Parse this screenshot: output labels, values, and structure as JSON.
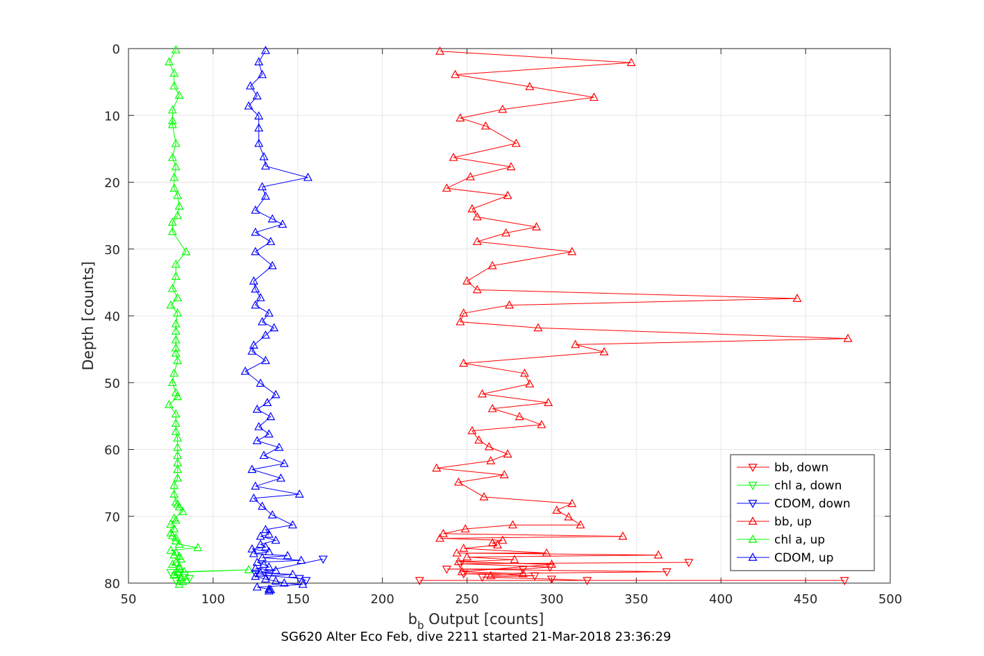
{
  "chart_data": {
    "type": "line",
    "xlabel_main": "b",
    "xlabel_sub": "b",
    "xlabel_rest": " Output [counts]",
    "ylabel": "Depth [counts]",
    "caption": "SG620 Alter Eco Feb, dive 2211 started 21-Mar-2018 23:36:29",
    "xlim": [
      50,
      500
    ],
    "ylim": [
      0,
      80
    ],
    "y_reversed": true,
    "grid": true,
    "legend_position": "bottom-right",
    "xticks": [
      50,
      100,
      150,
      200,
      250,
      300,
      350,
      400,
      450,
      500
    ],
    "yticks": [
      0,
      10,
      20,
      30,
      40,
      50,
      60,
      70,
      80
    ],
    "series": [
      {
        "name": "bb, down",
        "color": "#ff0000",
        "marker": "triangle-down",
        "x": [
          222,
          473,
          321,
          300,
          259,
          290,
          248,
          368,
          238,
          283,
          299,
          246,
          381
        ],
        "y": [
          79.6,
          79.6,
          79.6,
          79.4,
          79.1,
          78.9,
          78.6,
          78.3,
          77.9,
          77.9,
          77.6,
          77.1,
          76.9
        ]
      },
      {
        "name": "chl a, down",
        "color": "#00ff00",
        "marker": "triangle-down",
        "x": [
          78,
          86,
          80,
          75
        ],
        "y": [
          79.6,
          79.3,
          78.8,
          78.4
        ]
      },
      {
        "name": "CDOM, down",
        "color": "#0000ff",
        "marker": "triangle-down",
        "x": [
          155,
          151,
          133,
          125,
          165
        ],
        "y": [
          79.6,
          79.3,
          78.9,
          78.5,
          76.4
        ]
      },
      {
        "name": "bb, up",
        "color": "#ff0000",
        "marker": "triangle-up",
        "x": [
          234,
          347,
          243,
          287,
          325,
          271,
          246,
          261,
          279,
          242,
          276,
          252,
          238,
          274,
          253,
          256,
          291,
          273,
          256,
          312,
          265,
          250,
          256,
          445,
          275,
          248,
          246,
          292,
          475,
          314,
          331,
          248,
          284,
          287,
          259,
          298,
          265,
          281,
          294,
          253,
          257,
          263,
          274,
          264,
          232,
          272,
          245,
          260,
          312,
          303,
          310,
          317,
          277,
          249,
          236,
          342,
          234,
          271,
          265,
          268,
          248,
          297,
          244,
          363,
          250,
          278,
          245,
          300,
          247,
          283,
          264
        ],
        "y": [
          0.4,
          2.1,
          3.9,
          5.7,
          7.3,
          9.1,
          10.4,
          11.6,
          14.2,
          16.3,
          17.7,
          19.2,
          20.9,
          22.0,
          24.0,
          25.2,
          26.7,
          27.6,
          28.9,
          30.4,
          32.5,
          34.8,
          36.1,
          37.4,
          38.4,
          39.6,
          40.9,
          41.8,
          43.4,
          44.3,
          45.4,
          47.1,
          48.6,
          50.2,
          51.7,
          53.0,
          53.9,
          55.1,
          56.3,
          57.2,
          58.6,
          59.6,
          60.7,
          61.7,
          62.8,
          63.8,
          64.9,
          67.1,
          68.1,
          69.1,
          70.1,
          71.3,
          71.3,
          71.9,
          72.6,
          73.0,
          73.3,
          73.6,
          74.0,
          74.3,
          74.8,
          75.5,
          75.5,
          75.8,
          76.1,
          76.5,
          76.8,
          77.2,
          78.3,
          78.6,
          78.9
        ]
      },
      {
        "name": "chl a, up",
        "color": "#00ff00",
        "marker": "triangle-up",
        "x": [
          78,
          74,
          77,
          77,
          80,
          76,
          76,
          76,
          78,
          76,
          78,
          77,
          77,
          79,
          80,
          79,
          76,
          76,
          84,
          78,
          78,
          76,
          79,
          75,
          79,
          78,
          78,
          78,
          78,
          78,
          79,
          77,
          76,
          78,
          79,
          74,
          78,
          78,
          78,
          79,
          79,
          79,
          79,
          79,
          79,
          77,
          77,
          78,
          79,
          80,
          82,
          77,
          78,
          75,
          77,
          75,
          76,
          78,
          78,
          80,
          91,
          75,
          78,
          77,
          80,
          81,
          78,
          76,
          80,
          80,
          83,
          121,
          79,
          77,
          81,
          84,
          82,
          80
        ],
        "y": [
          0.2,
          2.0,
          3.7,
          5.6,
          7.0,
          9.2,
          10.8,
          11.4,
          14.2,
          16.3,
          17.7,
          19.3,
          20.9,
          22.0,
          23.6,
          25.0,
          26.0,
          27.4,
          30.4,
          32.3,
          34.1,
          35.9,
          37.3,
          38.4,
          39.6,
          41.2,
          42.3,
          43.6,
          44.8,
          45.6,
          46.7,
          48.6,
          50.0,
          51.5,
          52.1,
          53.3,
          54.7,
          56.1,
          57.3,
          58.3,
          59.7,
          60.9,
          62.0,
          63.0,
          64.3,
          65.4,
          66.7,
          67.9,
          68.2,
          68.6,
          69.3,
          70.3,
          70.6,
          71.2,
          71.9,
          72.5,
          72.9,
          73.2,
          73.7,
          74.2,
          74.7,
          75.1,
          75.4,
          75.8,
          76.0,
          76.4,
          76.9,
          77.2,
          77.5,
          77.8,
          78.3,
          78.0,
          78.4,
          78.8,
          79.2,
          79.5,
          79.8,
          80.2
        ]
      },
      {
        "name": "CDOM, up",
        "color": "#0000ff",
        "marker": "triangle-up",
        "x": [
          131,
          127,
          129,
          122,
          126,
          121,
          127,
          127,
          127,
          130,
          131,
          156,
          129,
          131,
          125,
          135,
          141,
          125,
          134,
          125,
          135,
          124,
          125,
          128,
          125,
          133,
          129,
          136,
          131,
          124,
          123,
          131,
          119,
          128,
          137,
          132,
          126,
          134,
          127,
          133,
          126,
          139,
          130,
          142,
          123,
          140,
          125,
          151,
          124,
          129,
          135,
          147,
          131,
          133,
          128,
          137,
          128,
          131,
          123,
          133,
          124,
          144,
          129,
          152,
          126,
          130,
          133,
          125,
          137,
          128,
          147,
          125,
          131,
          137,
          142,
          153,
          126,
          133,
          134,
          133
        ],
        "y": [
          0.3,
          2.0,
          3.9,
          5.6,
          7.1,
          8.6,
          10.1,
          11.9,
          14.2,
          16.2,
          17.6,
          19.3,
          20.7,
          22.1,
          24.2,
          25.5,
          26.3,
          27.5,
          28.9,
          30.4,
          32.5,
          34.8,
          36.0,
          37.3,
          38.4,
          39.6,
          40.9,
          41.8,
          42.9,
          44.4,
          45.3,
          46.7,
          48.3,
          50.1,
          51.8,
          53.0,
          54.0,
          55.1,
          56.6,
          57.7,
          58.7,
          59.7,
          60.9,
          62.1,
          63.0,
          64.3,
          65.5,
          66.7,
          67.3,
          68.5,
          69.8,
          71.3,
          72.0,
          72.7,
          73.0,
          73.6,
          74.2,
          74.6,
          74.9,
          75.3,
          75.6,
          75.9,
          76.2,
          76.6,
          76.9,
          77.2,
          77.6,
          77.8,
          78.1,
          78.5,
          78.7,
          79.0,
          79.4,
          79.7,
          80.0,
          80.2,
          80.6,
          80.9,
          81.0,
          81.2
        ]
      }
    ]
  }
}
